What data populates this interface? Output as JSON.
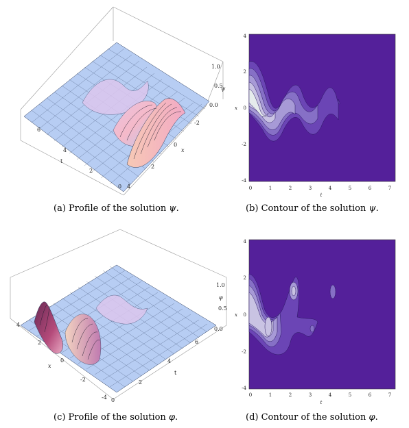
{
  "colors": {
    "contour_bg": "#54209a",
    "contour_levels": [
      "#6b45b5",
      "#8670c6",
      "#a79ad6",
      "#c9c3e3",
      "#e6ecec"
    ],
    "surface_base": "#b7cdf3",
    "surface_mesh": "#2a3a5a",
    "surface_peak": "#f0b6d0",
    "surface_dark": "#6a2a55"
  },
  "figures": {
    "a": {
      "caption_label": "(a) Profile of the solution ",
      "caption_var": "ψ",
      "caption_end": ".",
      "z_axis_label": "ψ",
      "z_ticks": [
        "1.0",
        "0.5",
        "0.0"
      ],
      "t_axis_label": "t",
      "t_ticks": [
        "6",
        "4",
        "2",
        "0"
      ],
      "x_axis_label": "x",
      "x_ticks": [
        "-2",
        "0",
        "2",
        "4"
      ]
    },
    "b": {
      "caption_label": "(b) Contour of the solution ",
      "caption_var": "ψ",
      "caption_end": ".",
      "y_axis_label": "x",
      "x_axis_label": "t",
      "y_ticks": [
        "4",
        "2",
        "0",
        "-2",
        "-4"
      ],
      "x_ticks": [
        "0",
        "1",
        "2",
        "3",
        "4",
        "5",
        "6",
        "7"
      ]
    },
    "c": {
      "caption_label": "(c) Profile of the solution ",
      "caption_var": "φ",
      "caption_end": ".",
      "z_axis_label": "φ",
      "z_ticks": [
        "1.0",
        "0.5",
        "0.0"
      ],
      "t_axis_label": "t",
      "t_ticks": [
        "0",
        "2",
        "4",
        "6"
      ],
      "x_axis_label": "x",
      "x_ticks": [
        "4",
        "2",
        "0",
        "-2",
        "-4"
      ]
    },
    "d": {
      "caption_label": "(d) Contour of the solution ",
      "caption_var": "φ",
      "caption_end": ".",
      "y_axis_label": "x",
      "x_axis_label": "t",
      "y_ticks": [
        "4",
        "2",
        "0",
        "-2",
        "-4"
      ],
      "x_ticks": [
        "0",
        "1",
        "2",
        "3",
        "4",
        "5",
        "6",
        "7"
      ]
    }
  }
}
